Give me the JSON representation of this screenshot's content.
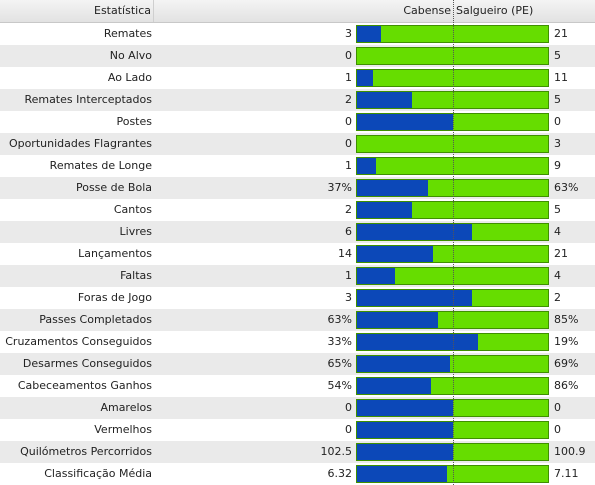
{
  "header": {
    "stat_label": "Estatística",
    "home_team": "Cabense",
    "away_team": "Salgueiro (PE)"
  },
  "colors": {
    "home_bar": "#0c48b8",
    "away_bar": "#66dd00"
  },
  "rows": [
    {
      "label": "Remates",
      "home": "3",
      "away": "21",
      "home_share": 0.125
    },
    {
      "label": "No Alvo",
      "home": "0",
      "away": "5",
      "home_share": 0.0
    },
    {
      "label": "Ao Lado",
      "home": "1",
      "away": "11",
      "home_share": 0.083
    },
    {
      "label": "Remates Interceptados",
      "home": "2",
      "away": "5",
      "home_share": 0.286
    },
    {
      "label": "Postes",
      "home": "0",
      "away": "0",
      "home_share": 0.5
    },
    {
      "label": "Oportunidades Flagrantes",
      "home": "0",
      "away": "3",
      "home_share": 0.0
    },
    {
      "label": "Remates de Longe",
      "home": "1",
      "away": "9",
      "home_share": 0.1
    },
    {
      "label": "Posse de Bola",
      "home": "37%",
      "away": "63%",
      "home_share": 0.37
    },
    {
      "label": "Cantos",
      "home": "2",
      "away": "5",
      "home_share": 0.286
    },
    {
      "label": "Livres",
      "home": "6",
      "away": "4",
      "home_share": 0.6
    },
    {
      "label": "Lançamentos",
      "home": "14",
      "away": "21",
      "home_share": 0.4
    },
    {
      "label": "Faltas",
      "home": "1",
      "away": "4",
      "home_share": 0.2
    },
    {
      "label": "Foras de Jogo",
      "home": "3",
      "away": "2",
      "home_share": 0.6
    },
    {
      "label": "Passes Completados",
      "home": "63%",
      "away": "85%",
      "home_share": 0.426
    },
    {
      "label": "Cruzamentos Conseguidos",
      "home": "33%",
      "away": "19%",
      "home_share": 0.635
    },
    {
      "label": "Desarmes Conseguidos",
      "home": "65%",
      "away": "69%",
      "home_share": 0.485
    },
    {
      "label": "Cabeceamentos Ganhos",
      "home": "54%",
      "away": "86%",
      "home_share": 0.386
    },
    {
      "label": "Amarelos",
      "home": "0",
      "away": "0",
      "home_share": 0.5
    },
    {
      "label": "Vermelhos",
      "home": "0",
      "away": "0",
      "home_share": 0.5
    },
    {
      "label": "Quilómetros Percorridos",
      "home": "102.5",
      "away": "100.9",
      "home_share": 0.504
    },
    {
      "label": "Classificação Média",
      "home": "6.32",
      "away": "7.11",
      "home_share": 0.471
    }
  ]
}
